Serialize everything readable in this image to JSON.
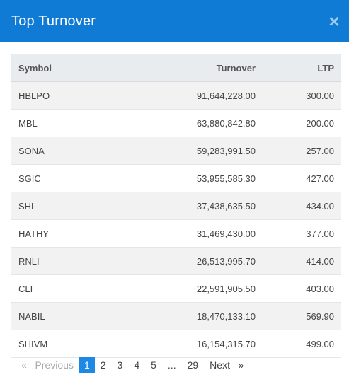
{
  "header": {
    "title": "Top Turnover",
    "close_glyph": "×"
  },
  "table": {
    "columns": [
      "Symbol",
      "Turnover",
      "LTP"
    ],
    "rows": [
      {
        "symbol": "HBLPO",
        "turnover": "91,644,228.00",
        "ltp": "300.00"
      },
      {
        "symbol": "MBL",
        "turnover": "63,880,842.80",
        "ltp": "200.00"
      },
      {
        "symbol": "SONA",
        "turnover": "59,283,991.50",
        "ltp": "257.00"
      },
      {
        "symbol": "SGIC",
        "turnover": "53,955,585.30",
        "ltp": "427.00"
      },
      {
        "symbol": "SHL",
        "turnover": "37,438,635.50",
        "ltp": "434.00"
      },
      {
        "symbol": "HATHY",
        "turnover": "31,469,430.00",
        "ltp": "377.00"
      },
      {
        "symbol": "RNLI",
        "turnover": "26,513,995.70",
        "ltp": "414.00"
      },
      {
        "symbol": "CLI",
        "turnover": "22,591,905.50",
        "ltp": "403.00"
      },
      {
        "symbol": "NABIL",
        "turnover": "18,470,133.10",
        "ltp": "569.90"
      },
      {
        "symbol": "SHIVM",
        "turnover": "16,154,315.70",
        "ltp": "499.00"
      }
    ]
  },
  "pagination": {
    "previous": "«   Previous",
    "pages": [
      "1",
      "2",
      "3",
      "4",
      "5"
    ],
    "ellipsis": "...",
    "last": "29",
    "next": "Next   »",
    "active_page": "1"
  },
  "colors": {
    "header_bg": "#0f7bd4",
    "active_page_bg": "#1e88e5"
  }
}
